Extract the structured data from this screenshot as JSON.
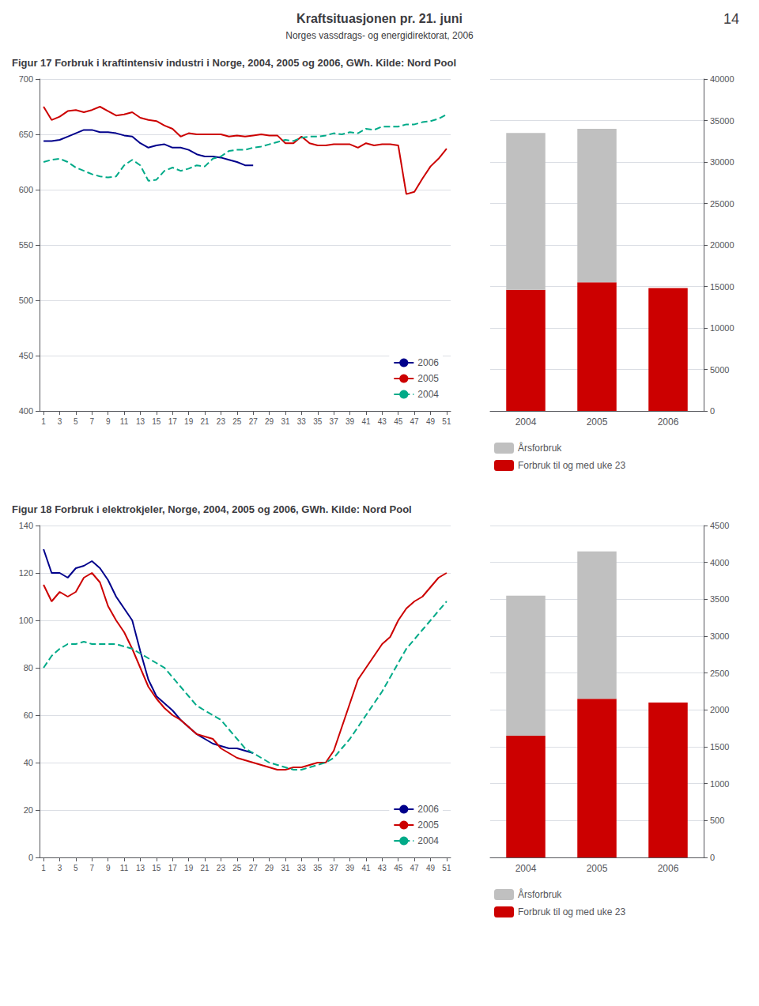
{
  "title": "Kraftsituasjonen pr. 21. juni",
  "subtitle": "Norges vassdrags- og energidirektorat, 2006",
  "annotations": [
    "14"
  ],
  "chart_data": [
    {
      "type": "line",
      "title": "Figur 17 Forbruk i kraftintensiv industri i Norge, 2004, 2005 og 2006, GWh. Kilde: Nord Pool",
      "x": [
        1,
        2,
        3,
        4,
        5,
        6,
        7,
        8,
        9,
        10,
        11,
        12,
        13,
        14,
        15,
        16,
        17,
        18,
        19,
        20,
        21,
        22,
        23,
        24,
        25,
        26,
        27,
        28,
        29,
        30,
        31,
        32,
        33,
        34,
        35,
        36,
        37,
        38,
        39,
        40,
        41,
        42,
        43,
        44,
        45,
        46,
        47,
        48,
        49,
        50,
        51
      ],
      "xlim": [
        0.5,
        51.5
      ],
      "xticks": [
        1,
        3,
        5,
        7,
        9,
        11,
        13,
        15,
        17,
        19,
        21,
        23,
        25,
        27,
        29,
        31,
        33,
        35,
        37,
        39,
        41,
        43,
        45,
        47,
        49,
        51
      ],
      "ylim": [
        400,
        700
      ],
      "yticks": [
        400,
        450,
        500,
        550,
        600,
        650,
        700
      ],
      "grid": true,
      "legend": "lower right",
      "series": [
        {
          "name": "2006",
          "color": "#00008B",
          "values": [
            644,
            644,
            645,
            648,
            651,
            654,
            654,
            652,
            652,
            651,
            649,
            648,
            642,
            638,
            640,
            641,
            638,
            638,
            636,
            632,
            630,
            630,
            629,
            627,
            625,
            622,
            622,
            null,
            null,
            null,
            null,
            null,
            null,
            null,
            null,
            null,
            null,
            null,
            null,
            null,
            null,
            null,
            null,
            null,
            null,
            null,
            null,
            null,
            null,
            null,
            null
          ]
        },
        {
          "name": "2005",
          "color": "#CC0000",
          "values": [
            675,
            663,
            666,
            671,
            672,
            670,
            672,
            675,
            671,
            667,
            668,
            670,
            665,
            663,
            662,
            658,
            655,
            648,
            651,
            650,
            650,
            650,
            650,
            648,
            649,
            648,
            649,
            650,
            649,
            649,
            642,
            642,
            648,
            642,
            640,
            640,
            641,
            641,
            641,
            638,
            642,
            640,
            641,
            641,
            640,
            596,
            598,
            610,
            621,
            628,
            637
          ]
        },
        {
          "name": "2004",
          "color": "#00AA88",
          "line_style": "dashed",
          "values": [
            625,
            627,
            628,
            625,
            620,
            617,
            614,
            612,
            611,
            612,
            622,
            627,
            622,
            608,
            609,
            617,
            620,
            617,
            619,
            622,
            621,
            628,
            630,
            635,
            636,
            636,
            638,
            639,
            641,
            643,
            645,
            644,
            647,
            648,
            648,
            649,
            651,
            650,
            652,
            651,
            655,
            654,
            657,
            657,
            657,
            659,
            659,
            661,
            662,
            664,
            668
          ]
        }
      ]
    },
    {
      "type": "bar",
      "categories": [
        "2004",
        "2005",
        "2006"
      ],
      "stacked": true,
      "ylim": [
        0,
        40000
      ],
      "yticks": [
        0,
        5000,
        10000,
        15000,
        20000,
        25000,
        30000,
        35000,
        40000
      ],
      "grid": true,
      "legend": "bottom",
      "series": [
        {
          "name": "Forbruk til og med uke 23",
          "color": "#CC0000",
          "values": [
            14600,
            15500,
            14800
          ]
        },
        {
          "name": "Årsforbruk",
          "color": "#C0C0C0",
          "values": [
            18900,
            18500,
            0
          ]
        }
      ]
    },
    {
      "type": "line",
      "title": "Figur 18 Forbruk i elektrokjeler, Norge, 2004, 2005 og 2006, GWh. Kilde: Nord Pool",
      "x": [
        1,
        2,
        3,
        4,
        5,
        6,
        7,
        8,
        9,
        10,
        11,
        12,
        13,
        14,
        15,
        16,
        17,
        18,
        19,
        20,
        21,
        22,
        23,
        24,
        25,
        26,
        27,
        28,
        29,
        30,
        31,
        32,
        33,
        34,
        35,
        36,
        37,
        38,
        39,
        40,
        41,
        42,
        43,
        44,
        45,
        46,
        47,
        48,
        49,
        50,
        51
      ],
      "xlim": [
        0.5,
        51.5
      ],
      "xticks": [
        1,
        3,
        5,
        7,
        9,
        11,
        13,
        15,
        17,
        19,
        21,
        23,
        25,
        27,
        29,
        31,
        33,
        35,
        37,
        39,
        41,
        43,
        45,
        47,
        49,
        51
      ],
      "ylim": [
        0,
        140
      ],
      "yticks": [
        0,
        20,
        40,
        60,
        80,
        100,
        120,
        140
      ],
      "grid": true,
      "legend": "lower right",
      "series": [
        {
          "name": "2006",
          "color": "#00008B",
          "values": [
            130,
            120,
            120,
            118,
            122,
            123,
            125,
            122,
            117,
            110,
            105,
            100,
            87,
            75,
            68,
            65,
            62,
            58,
            55,
            52,
            50,
            48,
            47,
            46,
            46,
            45,
            44,
            null,
            null,
            null,
            null,
            null,
            null,
            null,
            null,
            null,
            null,
            null,
            null,
            null,
            null,
            null,
            null,
            null,
            null,
            null,
            null,
            null,
            null,
            null,
            null
          ]
        },
        {
          "name": "2005",
          "color": "#CC0000",
          "values": [
            115,
            108,
            112,
            110,
            112,
            118,
            120,
            116,
            106,
            100,
            95,
            88,
            80,
            72,
            67,
            63,
            60,
            58,
            55,
            52,
            51,
            50,
            46,
            44,
            42,
            41,
            40,
            39,
            38,
            37,
            37,
            38,
            38,
            39,
            40,
            40,
            45,
            55,
            65,
            75,
            80,
            85,
            90,
            93,
            100,
            105,
            108,
            110,
            114,
            118,
            120
          ]
        },
        {
          "name": "2004",
          "color": "#00AA88",
          "line_style": "dashed",
          "values": [
            80,
            85,
            88,
            90,
            90,
            91,
            90,
            90,
            90,
            90,
            89,
            88,
            86,
            84,
            82,
            80,
            76,
            72,
            68,
            64,
            62,
            60,
            58,
            54,
            50,
            46,
            44,
            42,
            40,
            39,
            38,
            37,
            37,
            38,
            39,
            40,
            42,
            46,
            50,
            55,
            60,
            65,
            70,
            76,
            82,
            88,
            92,
            96,
            100,
            104,
            108
          ]
        }
      ]
    },
    {
      "type": "bar",
      "categories": [
        "2004",
        "2005",
        "2006"
      ],
      "stacked": true,
      "ylim": [
        0,
        4500
      ],
      "yticks": [
        0,
        500,
        1000,
        1500,
        2000,
        2500,
        3000,
        3500,
        4000,
        4500
      ],
      "grid": true,
      "legend": "bottom",
      "series": [
        {
          "name": "Forbruk til og med uke 23",
          "color": "#CC0000",
          "values": [
            1650,
            2150,
            2100
          ]
        },
        {
          "name": "Årsforbruk",
          "color": "#C0C0C0",
          "values": [
            1900,
            2000,
            0
          ]
        }
      ]
    }
  ]
}
